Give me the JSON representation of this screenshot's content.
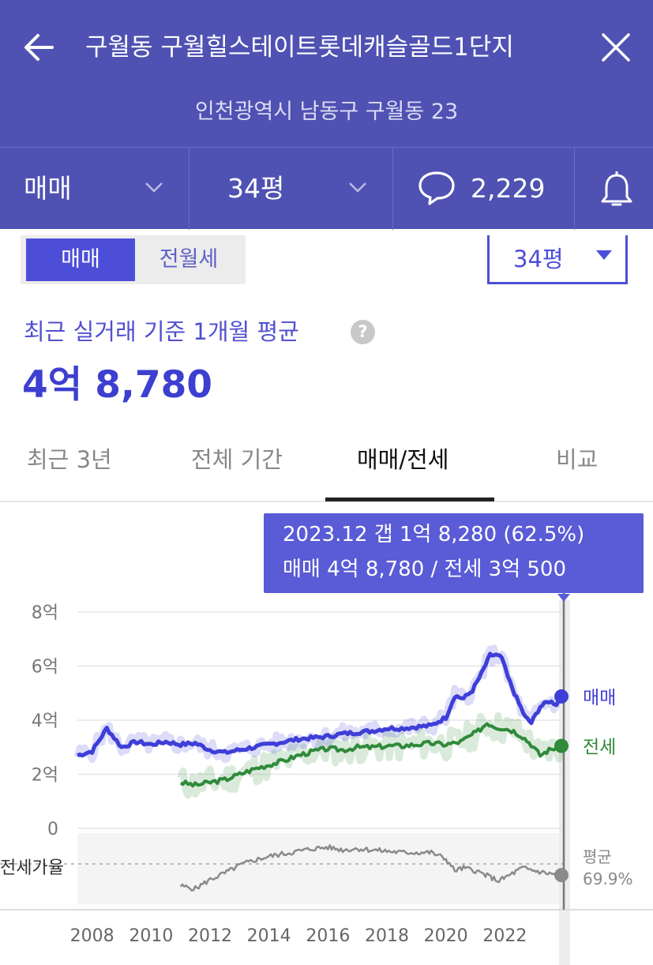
{
  "header": {
    "title": "구월동 구월힐스테이트롯데캐슬골드1단지",
    "address": "인천광역시 남동구 구월동 23",
    "icons": {
      "back": "arrow-left-icon",
      "close": "close-icon"
    }
  },
  "filter_bar": {
    "deal_type": "매매",
    "size": "34평",
    "comment_count": "2,229",
    "icons": {
      "chevron": "chevron-down-icon",
      "comment": "speech-bubble-icon",
      "bell": "bell-icon"
    }
  },
  "toggle": {
    "active": "매매",
    "inactive": "전월세"
  },
  "size_select": {
    "value": "34평"
  },
  "summary": {
    "label": "최근 실거래 기준 1개월 평균",
    "help": "?",
    "price": "4억 8,780"
  },
  "tabs": [
    {
      "label": "최근 3년"
    },
    {
      "label": "전체 기간"
    },
    {
      "label": "매매/전세"
    },
    {
      "label": "비교"
    }
  ],
  "active_tab_index": 2,
  "tooltip": {
    "line1": "2023.12  갭 1억 8,280 (62.5%)",
    "line2": "매매 4억 8,780 / 전세 3억 500"
  },
  "colors": {
    "header_bg": "#4f52b2",
    "accent": "#4d4ed8",
    "sale": "#3e3ed8",
    "jeonse": "#2f8a3a",
    "ratio": "#8a8a8a"
  },
  "chart_data": {
    "type": "line",
    "x_ticks": [
      "2008",
      "2010",
      "2012",
      "2014",
      "2016",
      "2018",
      "2020",
      "2022"
    ],
    "y_ticks": [
      "0",
      "2억",
      "4억",
      "6억",
      "8억"
    ],
    "ylim": [
      0,
      8
    ],
    "xlim": [
      2007.5,
      2024.0
    ],
    "ratio_label": "전세가율",
    "ratio_avg_label": "평균",
    "ratio_avg_value": "69.9%",
    "series": [
      {
        "name": "매매",
        "x": [
          2007.5,
          2008.0,
          2008.5,
          2009.0,
          2009.5,
          2010.0,
          2010.5,
          2011.0,
          2011.5,
          2012.0,
          2012.5,
          2013.0,
          2013.5,
          2014.0,
          2014.5,
          2015.0,
          2015.5,
          2016.0,
          2016.5,
          2017.0,
          2017.5,
          2018.0,
          2018.5,
          2019.0,
          2019.5,
          2020.0,
          2020.3,
          2020.6,
          2020.9,
          2021.2,
          2021.5,
          2021.7,
          2021.9,
          2022.1,
          2022.4,
          2022.7,
          2022.9,
          2023.2,
          2023.5,
          2023.75,
          2023.92
        ],
        "values": [
          2.7,
          2.85,
          3.7,
          3.0,
          3.2,
          3.1,
          3.2,
          3.1,
          3.15,
          2.9,
          2.8,
          2.9,
          3.0,
          3.1,
          3.2,
          3.3,
          3.35,
          3.4,
          3.5,
          3.55,
          3.6,
          3.7,
          3.7,
          3.75,
          3.8,
          4.1,
          4.9,
          4.8,
          5.1,
          5.7,
          6.4,
          6.4,
          6.3,
          5.6,
          4.8,
          4.1,
          3.9,
          4.5,
          4.7,
          4.6,
          4.878
        ]
      },
      {
        "name": "전세",
        "x": [
          2011.0,
          2011.5,
          2012.0,
          2012.5,
          2013.0,
          2013.5,
          2014.0,
          2014.5,
          2015.0,
          2015.5,
          2016.0,
          2016.5,
          2017.0,
          2017.5,
          2018.0,
          2018.5,
          2019.0,
          2019.5,
          2020.0,
          2020.5,
          2020.8,
          2021.1,
          2021.4,
          2021.7,
          2022.0,
          2022.3,
          2022.6,
          2022.9,
          2023.2,
          2023.5,
          2023.92
        ],
        "values": [
          1.7,
          1.6,
          1.7,
          1.8,
          2.0,
          2.2,
          2.35,
          2.5,
          2.7,
          2.85,
          2.95,
          2.9,
          3.0,
          3.0,
          3.05,
          3.05,
          3.1,
          3.15,
          3.1,
          3.2,
          3.4,
          3.6,
          3.9,
          3.75,
          3.7,
          3.6,
          3.4,
          3.1,
          2.7,
          2.9,
          3.05
        ]
      },
      {
        "name": "전세가율",
        "x": [
          2011.0,
          2011.5,
          2012.0,
          2012.5,
          2013.0,
          2013.5,
          2014.0,
          2014.5,
          2015.0,
          2015.5,
          2016.0,
          2016.5,
          2017.0,
          2017.5,
          2018.0,
          2018.5,
          2019.0,
          2019.5,
          2020.0,
          2020.3,
          2020.6,
          2021.0,
          2021.4,
          2021.8,
          2022.2,
          2022.6,
          2023.0,
          2023.4,
          2023.92
        ],
        "ratio_pct": [
          54,
          52,
          59,
          64,
          70,
          74,
          77,
          79,
          81,
          83,
          84,
          82,
          83,
          82,
          81,
          80,
          80,
          80,
          75,
          66,
          68,
          66,
          62,
          58,
          63,
          68,
          66,
          64,
          62.5
        ]
      }
    ]
  }
}
